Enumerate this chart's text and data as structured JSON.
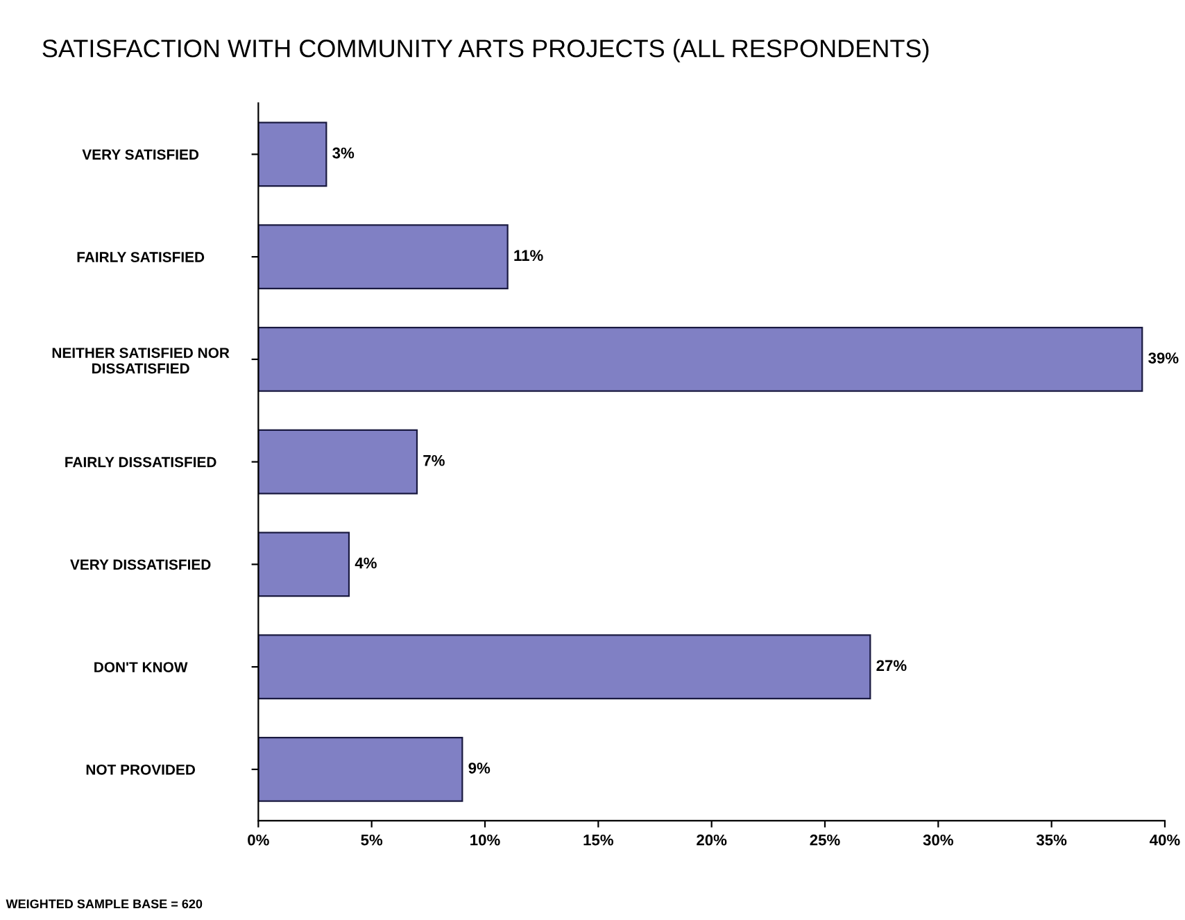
{
  "chart_data": {
    "type": "bar",
    "orientation": "horizontal",
    "title": "SATISFACTION WITH COMMUNITY ARTS PROJECTS (ALL RESPONDENTS)",
    "categories": [
      "VERY SATISFIED",
      "FAIRLY SATISFIED",
      "NEITHER SATISFIED NOR\nDISSATISFIED",
      "FAIRLY DISSATISFIED",
      "VERY DISSATISFIED",
      "DON'T KNOW",
      "NOT PROVIDED"
    ],
    "values": [
      3,
      11,
      39,
      7,
      4,
      27,
      9
    ],
    "value_labels": [
      "3%",
      "11%",
      "39%",
      "7%",
      "4%",
      "27%",
      "9%"
    ],
    "color": "#8080c4",
    "xlim": [
      0,
      40
    ],
    "xticks": [
      {
        "value": 0,
        "label": "0%"
      },
      {
        "value": 5,
        "label": "5%"
      },
      {
        "value": 10,
        "label": "10%"
      },
      {
        "value": 15,
        "label": "15%"
      },
      {
        "value": 20,
        "label": "20%"
      },
      {
        "value": 25,
        "label": "25%"
      },
      {
        "value": 30,
        "label": "30%"
      },
      {
        "value": 35,
        "label": "35%"
      },
      {
        "value": 40,
        "label": "40%"
      }
    ],
    "grid": false,
    "legend": false,
    "annotations": [
      "WEIGHTED SAMPLE BASE = 620"
    ]
  }
}
